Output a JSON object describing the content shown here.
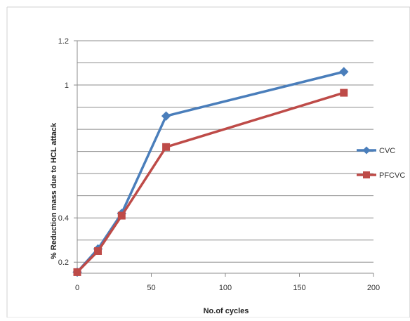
{
  "chart_data": {
    "type": "line",
    "title": "",
    "xlabel": "No.of cycles",
    "ylabel": "% Reduction mass due to HCL attack",
    "xlim": [
      0,
      200
    ],
    "ylim": [
      0.15,
      1.2
    ],
    "x_ticks": [
      {
        "value": 0,
        "label": "0"
      },
      {
        "value": 50,
        "label": "50"
      },
      {
        "value": 100,
        "label": "100"
      },
      {
        "value": 150,
        "label": "150"
      },
      {
        "value": 200,
        "label": "200"
      }
    ],
    "y_ticks": [
      {
        "value": 0.2,
        "label": "0.2"
      },
      {
        "value": 0.4,
        "label": "0.4"
      },
      {
        "value": 1.0,
        "label": "1"
      },
      {
        "value": 1.2,
        "label": "1.2"
      }
    ],
    "y_gridlines": [
      0.2,
      0.3,
      0.4,
      0.5,
      0.6,
      0.7,
      0.8,
      0.9,
      1.0,
      1.1,
      1.2
    ],
    "grid": true,
    "legend_position": "right",
    "series": [
      {
        "name": "CVC",
        "color": "#4a7ebb",
        "marker": "diamond",
        "points": [
          {
            "x": 0,
            "y": 0.155
          },
          {
            "x": 14,
            "y": 0.26
          },
          {
            "x": 30,
            "y": 0.42
          },
          {
            "x": 60,
            "y": 0.86
          },
          {
            "x": 180,
            "y": 1.06
          }
        ]
      },
      {
        "name": "PFCVC",
        "color": "#be4b48",
        "marker": "square",
        "points": [
          {
            "x": 0,
            "y": 0.155
          },
          {
            "x": 14,
            "y": 0.25
          },
          {
            "x": 30,
            "y": 0.41
          },
          {
            "x": 60,
            "y": 0.72
          },
          {
            "x": 180,
            "y": 0.965
          }
        ]
      }
    ]
  }
}
